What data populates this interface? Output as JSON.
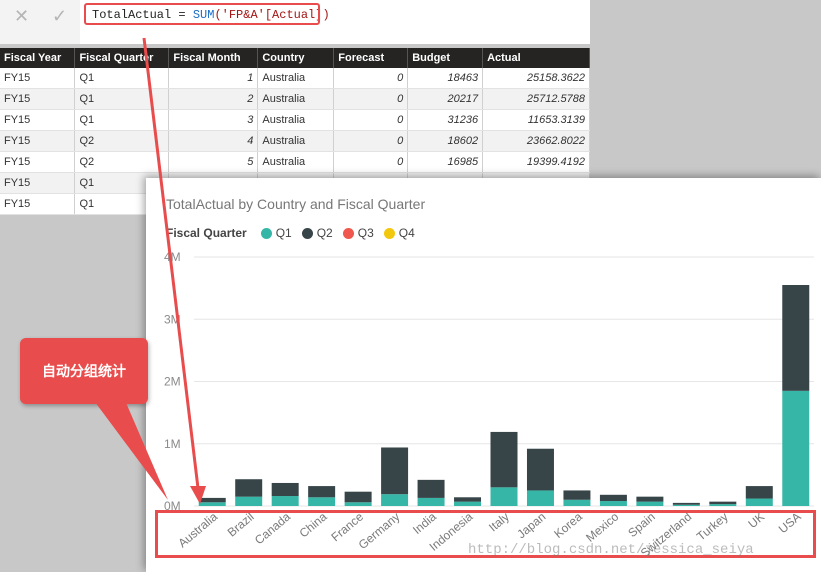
{
  "formula_bar": {
    "cancel_icon": "close-icon",
    "commit_icon": "check-icon",
    "measure": "TotalActual",
    "equals": " = ",
    "function": "SUM",
    "argument": "('FP&A'[Actual])"
  },
  "table": {
    "columns": [
      "Fiscal Year",
      "Fiscal Quarter",
      "Fiscal Month",
      "Country",
      "Forecast",
      "Budget",
      "Actual"
    ],
    "rows": [
      [
        "FY15",
        "Q1",
        "1",
        "Australia",
        "0",
        "18463",
        "25158.3622"
      ],
      [
        "FY15",
        "Q1",
        "2",
        "Australia",
        "0",
        "20217",
        "25712.5788"
      ],
      [
        "FY15",
        "Q1",
        "3",
        "Australia",
        "0",
        "31236",
        "11653.3139"
      ],
      [
        "FY15",
        "Q2",
        "4",
        "Australia",
        "0",
        "18602",
        "23662.8022"
      ],
      [
        "FY15",
        "Q2",
        "5",
        "Australia",
        "0",
        "16985",
        "19399.4192"
      ],
      [
        "FY15",
        "Q1",
        "",
        "",
        "",
        "",
        ""
      ],
      [
        "FY15",
        "Q1",
        "",
        "",
        "",
        "",
        ""
      ]
    ]
  },
  "chart": {
    "title": "TotalActual by Country and Fiscal Quarter",
    "legend_title": "Fiscal Quarter",
    "legend": [
      {
        "label": "Q1",
        "color": "#36b6a6"
      },
      {
        "label": "Q2",
        "color": "#374549"
      },
      {
        "label": "Q3",
        "color": "#f0574f"
      },
      {
        "label": "Q4",
        "color": "#f2c80f"
      }
    ]
  },
  "chart_data": {
    "type": "bar",
    "stacked": true,
    "title": "TotalActual by Country and Fiscal Quarter",
    "categories": [
      "Australia",
      "Brazil",
      "Canada",
      "China",
      "France",
      "Germany",
      "India",
      "Indonesia",
      "Italy",
      "Japan",
      "Korea",
      "Mexico",
      "Spain",
      "Switzerland",
      "Turkey",
      "UK",
      "USA"
    ],
    "series": [
      {
        "name": "Q1",
        "values": [
          60000,
          150000,
          160000,
          140000,
          60000,
          190000,
          130000,
          70000,
          300000,
          250000,
          100000,
          80000,
          70000,
          20000,
          30000,
          120000,
          1850000
        ]
      },
      {
        "name": "Q2",
        "values": [
          70000,
          280000,
          210000,
          180000,
          170000,
          750000,
          290000,
          70000,
          890000,
          670000,
          150000,
          100000,
          80000,
          30000,
          40000,
          200000,
          1700000
        ]
      },
      {
        "name": "Q3",
        "values": [
          0,
          0,
          0,
          0,
          0,
          0,
          0,
          0,
          0,
          0,
          0,
          0,
          0,
          0,
          0,
          0,
          0
        ]
      },
      {
        "name": "Q4",
        "values": [
          0,
          0,
          0,
          0,
          0,
          0,
          0,
          0,
          0,
          0,
          0,
          0,
          0,
          0,
          0,
          0,
          0
        ]
      }
    ],
    "ylim": [
      0,
      4000000
    ],
    "yticks": [
      "0M",
      "1M",
      "2M",
      "3M",
      "4M"
    ],
    "grid": true,
    "legend_position": "top-left"
  },
  "annotations": {
    "callout_text": "自动分组统计",
    "watermark": "http://blog.csdn.net/jessica_seiya"
  }
}
